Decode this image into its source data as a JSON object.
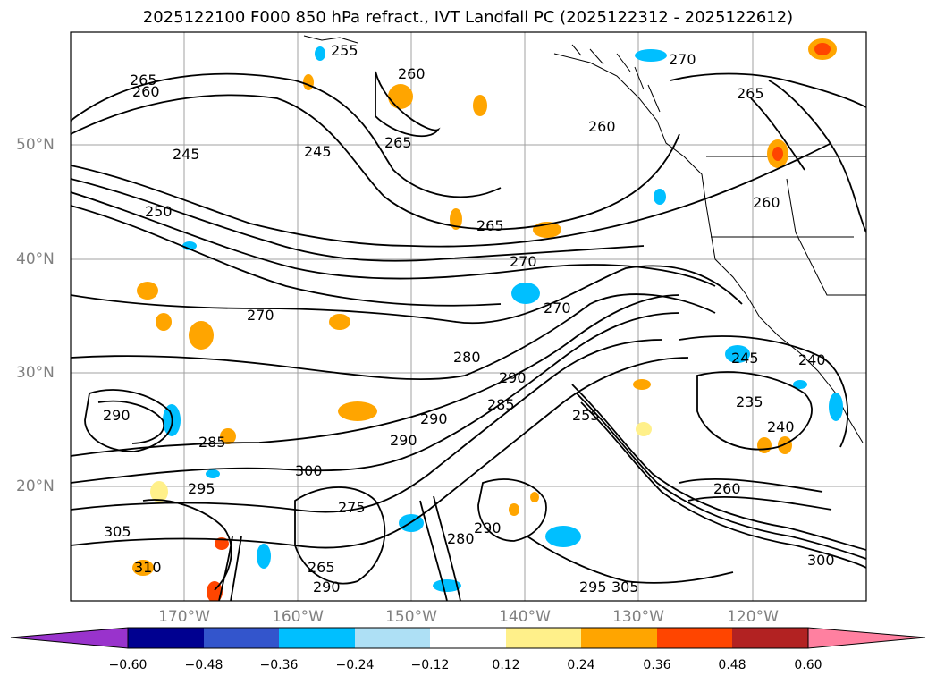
{
  "title": "2025122100 F000 850 hPa refract., IVT Landfall PC (2025122312 - 2025122612)",
  "lat_labels": [
    "50°N",
    "40°N",
    "30°N",
    "20°N"
  ],
  "lon_labels": [
    "170°W",
    "160°W",
    "150°W",
    "140°W",
    "130°W",
    "120°W"
  ],
  "colorbar": {
    "ticks": [
      "−0.60",
      "−0.48",
      "−0.36",
      "−0.24",
      "−0.12",
      "0.12",
      "0.24",
      "0.36",
      "0.48",
      "0.60"
    ],
    "colors": [
      "#9933cc",
      "#000090",
      "#3355cc",
      "#00bfff",
      "#aee0f5",
      "#ffffff",
      "#fff08a",
      "#ffa500",
      "#ff4500",
      "#b22222",
      "#ff80a0"
    ]
  },
  "contour_labels": [
    "265",
    "260",
    "255",
    "245",
    "265",
    "260",
    "270",
    "265",
    "260",
    "245",
    "250",
    "265",
    "270",
    "260",
    "270",
    "270",
    "280",
    "290",
    "285",
    "290",
    "285",
    "290",
    "295",
    "305",
    "310",
    "300",
    "275",
    "290",
    "280",
    "290",
    "255",
    "245",
    "240",
    "235",
    "240",
    "260",
    "265",
    "290",
    "300",
    "295",
    "305"
  ],
  "anomaly_colors": {
    "orange": "#ffa500",
    "light_yellow": "#fff08a",
    "red": "#ff4500",
    "sky_blue": "#00bfff",
    "light_blue": "#aee0f5"
  }
}
